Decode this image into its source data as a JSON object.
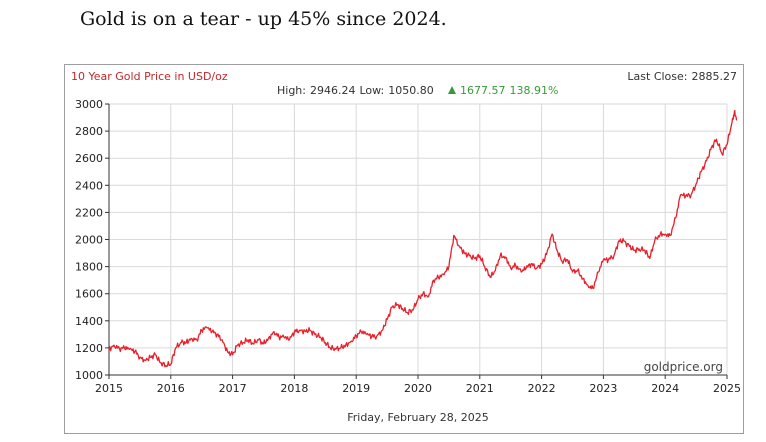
{
  "headline": "Gold is on a tear - up 45% since 2024.",
  "colors": {
    "series": "#e8202a",
    "title": "#c0282a",
    "change": "#3a9a3a",
    "grid": "#d9d9d9",
    "axis": "#333333"
  },
  "chart_data": {
    "type": "line",
    "title": "10 Year Gold Price in USD/oz",
    "stats": {
      "high_label": "High:",
      "high": "2946.24",
      "low_label": "Low:",
      "low": "1050.80",
      "change_icon": "up-triangle-icon",
      "change": "1677.57",
      "change_pct": "138.91%"
    },
    "last_close_label": "Last Close:",
    "last_close": "2885.27",
    "watermark": "goldprice.org",
    "footer_date": "Friday, February 28, 2025",
    "xlim": [
      2015,
      2025
    ],
    "ylim": [
      1000,
      3000
    ],
    "x_ticks": [
      "2015",
      "2016",
      "2017",
      "2018",
      "2019",
      "2020",
      "2021",
      "2022",
      "2023",
      "2024",
      "2025"
    ],
    "y_ticks": [
      "1000",
      "1200",
      "1400",
      "1600",
      "1800",
      "2000",
      "2200",
      "2400",
      "2600",
      "2800",
      "3000"
    ],
    "grid": true,
    "series": [
      {
        "points": [
          [
            2015.0,
            1190
          ],
          [
            2015.08,
            1220
          ],
          [
            2015.17,
            1195
          ],
          [
            2015.25,
            1200
          ],
          [
            2015.33,
            1190
          ],
          [
            2015.42,
            1175
          ],
          [
            2015.5,
            1130
          ],
          [
            2015.58,
            1110
          ],
          [
            2015.67,
            1130
          ],
          [
            2015.75,
            1150
          ],
          [
            2015.83,
            1090
          ],
          [
            2015.92,
            1070
          ],
          [
            2016.0,
            1080
          ],
          [
            2016.08,
            1200
          ],
          [
            2016.17,
            1240
          ],
          [
            2016.25,
            1240
          ],
          [
            2016.33,
            1270
          ],
          [
            2016.42,
            1260
          ],
          [
            2016.5,
            1330
          ],
          [
            2016.58,
            1350
          ],
          [
            2016.67,
            1320
          ],
          [
            2016.75,
            1300
          ],
          [
            2016.83,
            1260
          ],
          [
            2016.92,
            1170
          ],
          [
            2017.0,
            1150
          ],
          [
            2017.08,
            1220
          ],
          [
            2017.17,
            1240
          ],
          [
            2017.25,
            1260
          ],
          [
            2017.33,
            1230
          ],
          [
            2017.42,
            1260
          ],
          [
            2017.5,
            1230
          ],
          [
            2017.58,
            1270
          ],
          [
            2017.67,
            1320
          ],
          [
            2017.75,
            1280
          ],
          [
            2017.83,
            1280
          ],
          [
            2017.92,
            1260
          ],
          [
            2018.0,
            1320
          ],
          [
            2018.08,
            1330
          ],
          [
            2018.17,
            1325
          ],
          [
            2018.25,
            1330
          ],
          [
            2018.33,
            1300
          ],
          [
            2018.42,
            1280
          ],
          [
            2018.5,
            1240
          ],
          [
            2018.58,
            1200
          ],
          [
            2018.67,
            1190
          ],
          [
            2018.75,
            1200
          ],
          [
            2018.83,
            1220
          ],
          [
            2018.92,
            1250
          ],
          [
            2019.0,
            1290
          ],
          [
            2019.08,
            1320
          ],
          [
            2019.17,
            1300
          ],
          [
            2019.25,
            1285
          ],
          [
            2019.33,
            1285
          ],
          [
            2019.42,
            1330
          ],
          [
            2019.5,
            1410
          ],
          [
            2019.58,
            1500
          ],
          [
            2019.67,
            1520
          ],
          [
            2019.75,
            1490
          ],
          [
            2019.83,
            1460
          ],
          [
            2019.92,
            1480
          ],
          [
            2020.0,
            1560
          ],
          [
            2020.08,
            1600
          ],
          [
            2020.17,
            1580
          ],
          [
            2020.25,
            1700
          ],
          [
            2020.33,
            1720
          ],
          [
            2020.42,
            1740
          ],
          [
            2020.5,
            1800
          ],
          [
            2020.58,
            2030
          ],
          [
            2020.67,
            1950
          ],
          [
            2020.75,
            1900
          ],
          [
            2020.83,
            1880
          ],
          [
            2020.92,
            1860
          ],
          [
            2021.0,
            1880
          ],
          [
            2021.08,
            1800
          ],
          [
            2021.17,
            1720
          ],
          [
            2021.25,
            1770
          ],
          [
            2021.33,
            1880
          ],
          [
            2021.42,
            1870
          ],
          [
            2021.5,
            1790
          ],
          [
            2021.58,
            1810
          ],
          [
            2021.67,
            1760
          ],
          [
            2021.75,
            1790
          ],
          [
            2021.83,
            1820
          ],
          [
            2021.92,
            1790
          ],
          [
            2022.0,
            1820
          ],
          [
            2022.08,
            1890
          ],
          [
            2022.17,
            2040
          ],
          [
            2022.25,
            1920
          ],
          [
            2022.33,
            1840
          ],
          [
            2022.42,
            1850
          ],
          [
            2022.5,
            1760
          ],
          [
            2022.58,
            1770
          ],
          [
            2022.67,
            1710
          ],
          [
            2022.75,
            1660
          ],
          [
            2022.83,
            1640
          ],
          [
            2022.92,
            1760
          ],
          [
            2023.0,
            1850
          ],
          [
            2023.08,
            1850
          ],
          [
            2023.17,
            1880
          ],
          [
            2023.25,
            1990
          ],
          [
            2023.33,
            1990
          ],
          [
            2023.42,
            1950
          ],
          [
            2023.5,
            1920
          ],
          [
            2023.58,
            1930
          ],
          [
            2023.67,
            1920
          ],
          [
            2023.75,
            1860
          ],
          [
            2023.83,
            1990
          ],
          [
            2023.92,
            2040
          ],
          [
            2024.0,
            2040
          ],
          [
            2024.08,
            2030
          ],
          [
            2024.17,
            2160
          ],
          [
            2024.25,
            2330
          ],
          [
            2024.33,
            2320
          ],
          [
            2024.42,
            2330
          ],
          [
            2024.5,
            2410
          ],
          [
            2024.58,
            2500
          ],
          [
            2024.67,
            2580
          ],
          [
            2024.75,
            2680
          ],
          [
            2024.83,
            2740
          ],
          [
            2024.92,
            2630
          ],
          [
            2025.0,
            2700
          ],
          [
            2025.08,
            2860
          ],
          [
            2025.12,
            2940
          ],
          [
            2025.16,
            2885
          ]
        ]
      }
    ]
  }
}
